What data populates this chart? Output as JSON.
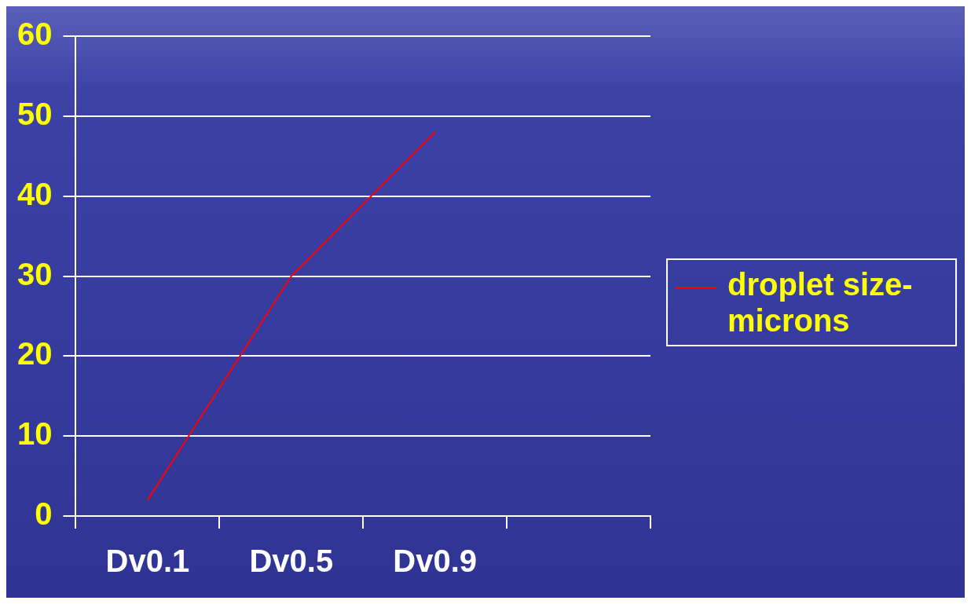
{
  "chart_data": {
    "type": "line",
    "categories": [
      "Dv0.1",
      "Dv0.5",
      "Dv0.9",
      null
    ],
    "series": [
      {
        "name": "droplet size-microns",
        "color": "#ff0000",
        "values": [
          2,
          30,
          48,
          null
        ]
      }
    ],
    "ylim": [
      0,
      60
    ],
    "yticks": [
      0,
      10,
      20,
      30,
      40,
      50,
      60
    ],
    "grid": "y",
    "legend": "right",
    "marker": "none",
    "line_style": "solid"
  }
}
